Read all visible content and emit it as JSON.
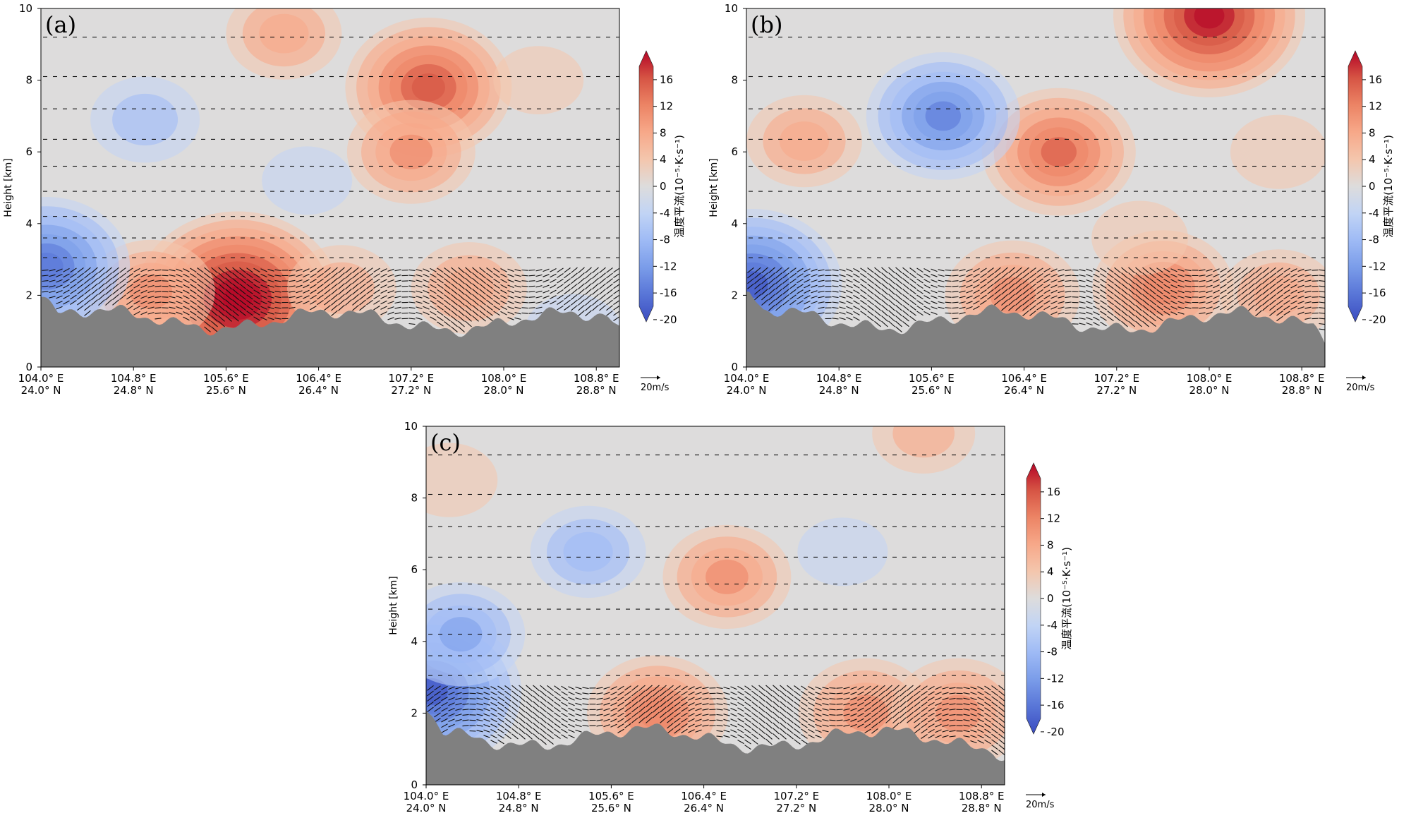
{
  "chart_data": [
    {
      "type": "heatmap",
      "panel_label": "(a)",
      "ylabel": "Height [km]",
      "yticks": [
        0,
        2,
        4,
        6,
        8,
        10
      ],
      "ylim": [
        0,
        10
      ],
      "xticks": [
        {
          "lon": "104.0° E",
          "lat": "24.0° N"
        },
        {
          "lon": "104.8° E",
          "lat": "24.8° N"
        },
        {
          "lon": "105.6° E",
          "lat": "25.6° N"
        },
        {
          "lon": "106.4° E",
          "lat": "26.4° N"
        },
        {
          "lon": "107.2° E",
          "lat": "27.2° N"
        },
        {
          "lon": "108.0° E",
          "lat": "28.0° N"
        },
        {
          "lon": "108.8° E",
          "lat": "28.8° N"
        }
      ],
      "x_along_lon": [
        104.0,
        109.0
      ],
      "colorbar_label": "温度平流(10⁻⁵·K·s⁻¹)",
      "colorbar_ticks": [
        16,
        12,
        8,
        4,
        0,
        -4,
        -8,
        -12,
        -16,
        -20
      ],
      "vector_ref": "20m/s",
      "features": [
        {
          "lon": 105.7,
          "height": 1.9,
          "value": 20
        },
        {
          "lon": 107.35,
          "height": 7.8,
          "value": 14
        },
        {
          "lon": 107.2,
          "height": 6.0,
          "value": 8
        },
        {
          "lon": 106.1,
          "height": 9.3,
          "value": 6
        },
        {
          "lon": 104.95,
          "height": 2.1,
          "value": 8
        },
        {
          "lon": 106.6,
          "height": 2.2,
          "value": 5
        },
        {
          "lon": 107.7,
          "height": 2.2,
          "value": 6
        },
        {
          "lon": 104.9,
          "height": 6.9,
          "value": -5
        },
        {
          "lon": 104.05,
          "height": 2.8,
          "value": -14
        },
        {
          "lon": 106.3,
          "height": 5.2,
          "value": -2
        },
        {
          "lon": 108.3,
          "height": 8.0,
          "value": 2
        },
        {
          "lon": 108.6,
          "height": 1.0,
          "value": -3
        }
      ]
    },
    {
      "type": "heatmap",
      "panel_label": "(b)",
      "ylabel": "Height [km]",
      "yticks": [
        0,
        2,
        4,
        6,
        8,
        10
      ],
      "ylim": [
        0,
        10
      ],
      "xticks": [
        {
          "lon": "104.0° E",
          "lat": "24.0° N"
        },
        {
          "lon": "104.8° E",
          "lat": "24.8° N"
        },
        {
          "lon": "105.6° E",
          "lat": "25.6° N"
        },
        {
          "lon": "106.4° E",
          "lat": "26.4° N"
        },
        {
          "lon": "107.2° E",
          "lat": "27.2° N"
        },
        {
          "lon": "108.0° E",
          "lat": "28.0° N"
        },
        {
          "lon": "108.8° E",
          "lat": "28.8° N"
        }
      ],
      "x_along_lon": [
        104.0,
        109.0
      ],
      "colorbar_label": "温度平流(10⁻⁵·K·s⁻¹)",
      "colorbar_ticks": [
        16,
        12,
        8,
        4,
        0,
        -4,
        -8,
        -12,
        -16,
        -20
      ],
      "vector_ref": "20m/s",
      "features": [
        {
          "lon": 108.0,
          "height": 9.8,
          "value": 18
        },
        {
          "lon": 106.7,
          "height": 6.0,
          "value": 12
        },
        {
          "lon": 105.7,
          "height": 7.0,
          "value": -12
        },
        {
          "lon": 104.05,
          "height": 2.3,
          "value": -16
        },
        {
          "lon": 104.5,
          "height": 6.3,
          "value": 6
        },
        {
          "lon": 106.3,
          "height": 2.0,
          "value": 9
        },
        {
          "lon": 107.6,
          "height": 2.2,
          "value": 10
        },
        {
          "lon": 108.6,
          "height": 2.0,
          "value": 6
        },
        {
          "lon": 108.6,
          "height": 6.0,
          "value": 3
        },
        {
          "lon": 107.4,
          "height": 3.6,
          "value": 3
        }
      ]
    },
    {
      "type": "heatmap",
      "panel_label": "(c)",
      "ylabel": "Height [km]",
      "yticks": [
        0,
        2,
        4,
        6,
        8,
        10
      ],
      "ylim": [
        0,
        10
      ],
      "xticks": [
        {
          "lon": "104.0° E",
          "lat": "24.0° N"
        },
        {
          "lon": "104.8° E",
          "lat": "24.8° N"
        },
        {
          "lon": "105.6° E",
          "lat": "25.6° N"
        },
        {
          "lon": "106.4° E",
          "lat": "26.4° N"
        },
        {
          "lon": "107.2° E",
          "lat": "27.2° N"
        },
        {
          "lon": "108.0° E",
          "lat": "28.0° N"
        },
        {
          "lon": "108.8° E",
          "lat": "28.8° N"
        }
      ],
      "x_along_lon": [
        104.0,
        109.0
      ],
      "colorbar_label": "温度平流(10⁻⁵·K·s⁻¹)",
      "colorbar_ticks": [
        16,
        12,
        8,
        4,
        0,
        -4,
        -8,
        -12,
        -16,
        -20
      ],
      "vector_ref": "20m/s",
      "features": [
        {
          "lon": 104.05,
          "height": 2.6,
          "value": -16
        },
        {
          "lon": 104.3,
          "height": 4.2,
          "value": -8
        },
        {
          "lon": 105.4,
          "height": 6.5,
          "value": -6
        },
        {
          "lon": 106.6,
          "height": 5.8,
          "value": 8
        },
        {
          "lon": 106.0,
          "height": 2.0,
          "value": 10
        },
        {
          "lon": 107.8,
          "height": 2.0,
          "value": 9
        },
        {
          "lon": 108.6,
          "height": 2.0,
          "value": 9
        },
        {
          "lon": 108.3,
          "height": 9.8,
          "value": 4
        },
        {
          "lon": 104.2,
          "height": 8.5,
          "value": 3
        },
        {
          "lon": 107.6,
          "height": 6.5,
          "value": -2
        }
      ]
    }
  ],
  "colors": {
    "terrain": "#808080",
    "colormap": [
      "#3b4cc0",
      "#5875d7",
      "#7a9ce9",
      "#9ebaf5",
      "#c1d4f5",
      "#dddcdc",
      "#f4c6ad",
      "#f7a889",
      "#ec8465",
      "#d65444",
      "#b40426"
    ]
  }
}
